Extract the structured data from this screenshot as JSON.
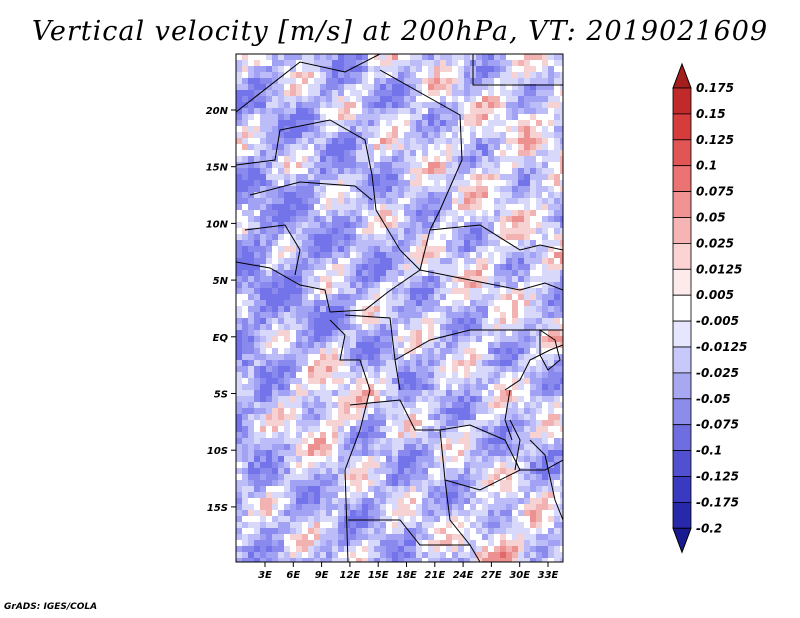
{
  "title": "Vertical velocity [m/s] at 200hPa, VT: 2019021609",
  "footer": "GrADS: IGES/COLA",
  "lat_labels": [
    "20N",
    "15N",
    "10N",
    "5N",
    "EQ",
    "5S",
    "10S",
    "15S"
  ],
  "lon_labels": [
    "3E",
    "6E",
    "9E",
    "12E",
    "15E",
    "18E",
    "21E",
    "24E",
    "27E",
    "30E",
    "33E"
  ],
  "colorbar": {
    "labels": [
      "0.175",
      "0.15",
      "0.125",
      "0.1",
      "0.075",
      "0.05",
      "0.025",
      "0.0125",
      "0.005",
      "-0.005",
      "-0.0125",
      "-0.025",
      "-0.05",
      "-0.075",
      "-0.1",
      "-0.125",
      "-0.175",
      "-0.2"
    ],
    "colors": [
      "#a51e1e",
      "#c02a2a",
      "#d63c3c",
      "#e25555",
      "#eb7373",
      "#f29393",
      "#f7b4b4",
      "#fbd3d3",
      "#fdeaea",
      "#ffffff",
      "#e6e6ff",
      "#c8c8fa",
      "#a8a8f2",
      "#8c8ceb",
      "#6e6ee0",
      "#5050d0",
      "#3a3ac0",
      "#2828aa",
      "#1a1a90"
    ]
  },
  "map_palette": [
    "#7474ea",
    "#8a8aee",
    "#a2a2f4",
    "#bcbcf8",
    "#d8d8fb",
    "#ffffff",
    "#f6d2d2",
    "#f2b2b2",
    "#ec9090",
    "#e06868",
    "#c23838"
  ]
}
